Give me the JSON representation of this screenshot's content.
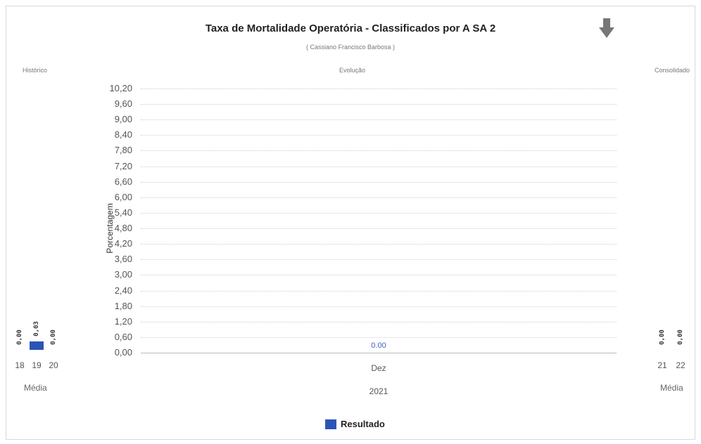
{
  "header": {
    "title": "Taxa de Mortalidade Operatória - Classificados por A SA 2",
    "subtitle": "( Cassiano Francisco Barbosa )"
  },
  "sections": {
    "historico": "Histórico",
    "evolucao": "Evolução",
    "consolidado": "Consolidado"
  },
  "icons": {
    "download": "download-arrow-icon"
  },
  "colors": {
    "series": "#2b55b5"
  },
  "chart_data": [
    {
      "type": "bar",
      "name": "Histórico",
      "categories": [
        "18",
        "19",
        "20"
      ],
      "series": [
        {
          "name": "Resultado",
          "values": [
            0.0,
            0.03,
            0.0
          ],
          "labels": [
            "0,00",
            "0,03",
            "0,00"
          ]
        }
      ],
      "xlabel": "Média"
    },
    {
      "type": "bar",
      "name": "Evolução",
      "categories": [
        "Dez"
      ],
      "group_label": "2021",
      "series": [
        {
          "name": "Resultado",
          "values": [
            0.0
          ],
          "labels": [
            "0.00"
          ]
        }
      ],
      "ylabel": "Porcentagem",
      "yticks": [
        "0,00",
        "0,60",
        "1,20",
        "1,80",
        "2,40",
        "3,00",
        "3,60",
        "4,20",
        "4,80",
        "5,40",
        "6,00",
        "6,60",
        "7,20",
        "7,80",
        "8,40",
        "9,00",
        "9,60",
        "10,20"
      ],
      "ylim": [
        0,
        10.2
      ],
      "grid": true,
      "legend": "bottom"
    },
    {
      "type": "bar",
      "name": "Consolidado",
      "categories": [
        "21",
        "22"
      ],
      "series": [
        {
          "name": "Resultado",
          "values": [
            0.0,
            0.0
          ],
          "labels": [
            "0,00",
            "0,00"
          ]
        }
      ],
      "xlabel": "Média"
    }
  ],
  "legend": {
    "label": "Resultado"
  }
}
